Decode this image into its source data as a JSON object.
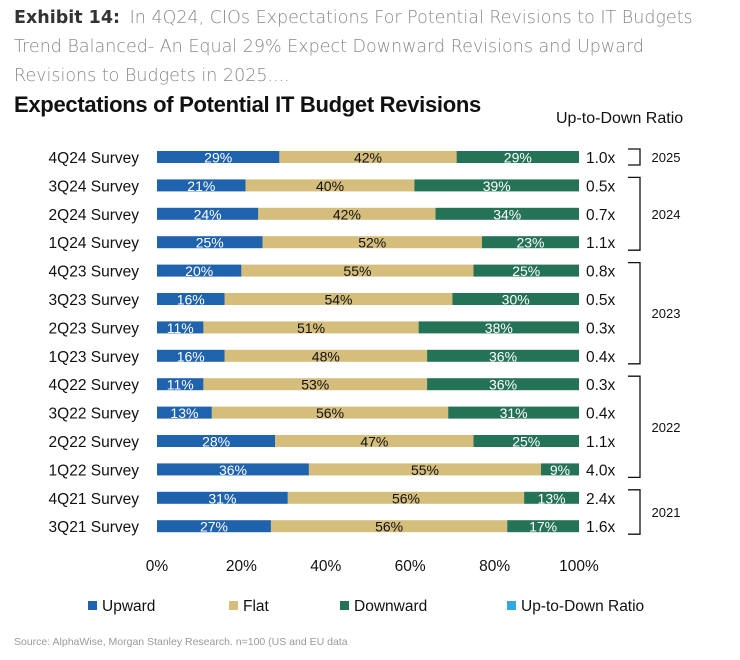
{
  "header": {
    "exhibit_label": "Exhibit 14:",
    "description": "In 4Q24, CIOs Expectations For Potential Revisions to IT Budgets Trend Balanced- An Equal 29% Expect Downward Revisions and Upward Revisions to Budgets in 2025...."
  },
  "footer": {
    "source": "Source: AlphaWise, Morgan Stanley Research. n=100 (US and EU data"
  },
  "colors": {
    "upward": "#1f62ad",
    "flat": "#d5bd7c",
    "downward": "#257357",
    "ratio": "#2fa9e0"
  },
  "chart_data": {
    "type": "bar",
    "orientation": "horizontal-stacked-100",
    "title": "Expectations of Potential  IT Budget Revisions",
    "ratio_column_title": "Up-to-Down Ratio",
    "categories": [
      "4Q24 Survey",
      "3Q24 Survey",
      "2Q24 Survey",
      "1Q24 Survey",
      "4Q23 Survey",
      "3Q23 Survey",
      "2Q23 Survey",
      "1Q23 Survey",
      "4Q22 Survey",
      "3Q22 Survey",
      "2Q22 Survey",
      "1Q22 Survey",
      "4Q21 Survey",
      "3Q21 Survey"
    ],
    "series": [
      {
        "name": "Upward",
        "values": [
          29,
          21,
          24,
          25,
          20,
          16,
          11,
          16,
          11,
          13,
          28,
          36,
          31,
          27
        ]
      },
      {
        "name": "Flat",
        "values": [
          42,
          40,
          42,
          52,
          55,
          54,
          51,
          48,
          53,
          56,
          47,
          55,
          56,
          56
        ]
      },
      {
        "name": "Downward",
        "values": [
          29,
          39,
          34,
          23,
          25,
          30,
          38,
          36,
          36,
          31,
          25,
          9,
          13,
          17
        ]
      }
    ],
    "labels": [
      [
        "29%",
        "42%",
        "29%"
      ],
      [
        "21%",
        "40%",
        "39%"
      ],
      [
        "24%",
        "42%",
        "34%"
      ],
      [
        "25%",
        "52%",
        "23%"
      ],
      [
        "20%",
        "55%",
        "25%"
      ],
      [
        "16%",
        "54%",
        "30%"
      ],
      [
        "11%",
        "51%",
        "38%"
      ],
      [
        "16%",
        "48%",
        "36%"
      ],
      [
        "11%",
        "53%",
        "36%"
      ],
      [
        "13%",
        "56%",
        "31%"
      ],
      [
        "28%",
        "47%",
        "25%"
      ],
      [
        "36%",
        "55%",
        "9%"
      ],
      [
        "31%",
        "56%",
        "13%"
      ],
      [
        "27%",
        "56%",
        "17%"
      ]
    ],
    "ratios": [
      "1.0x",
      "0.5x",
      "0.7x",
      "1.1x",
      "0.8x",
      "0.5x",
      "0.3x",
      "0.4x",
      "0.3x",
      "0.4x",
      "1.1x",
      "4.0x",
      "2.4x",
      "1.6x"
    ],
    "year_groups": [
      {
        "year": "2025",
        "from": 0,
        "to": 0
      },
      {
        "year": "2024",
        "from": 1,
        "to": 3
      },
      {
        "year": "2023",
        "from": 4,
        "to": 7
      },
      {
        "year": "2022",
        "from": 8,
        "to": 11
      },
      {
        "year": "2021",
        "from": 12,
        "to": 13
      }
    ],
    "xlim": [
      0,
      100
    ],
    "x_ticks": [
      "0%",
      "20%",
      "40%",
      "60%",
      "80%",
      "100%"
    ],
    "legend": [
      "Upward",
      "Flat",
      "Downward",
      "Up-to-Down Ratio"
    ],
    "legend_position": "bottom"
  }
}
